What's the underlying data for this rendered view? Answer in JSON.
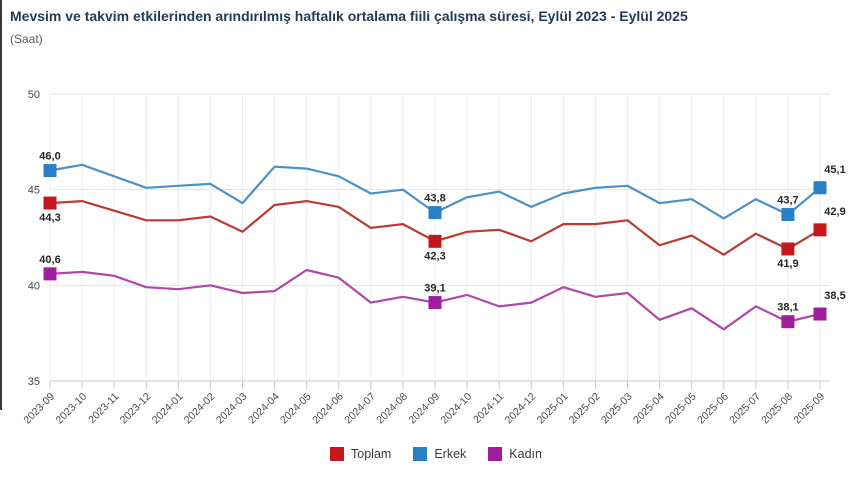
{
  "header": {
    "title": "Mevsim ve takvim etkilerinden arındırılmış haftalık ortalama fiili çalışma süresi, Eylül 2023 - Eylül 2025",
    "subtitle": "(Saat)"
  },
  "colors": {
    "title": "#1f3b57",
    "subtitle": "#595959",
    "grid": "#ececec",
    "grid_h": "#e3e3e3",
    "axis": "#c9c9c9",
    "tick_text": "#4a4a4a",
    "data_label": "#262626",
    "legend_text": "#3a3a3a",
    "left_border": "#3a3a3a"
  },
  "chart_data": {
    "type": "line",
    "x": [
      "2023-09",
      "2023-10",
      "2023-11",
      "2023-12",
      "2024-01",
      "2024-02",
      "2024-03",
      "2024-04",
      "2024-05",
      "2024-06",
      "2024-07",
      "2024-08",
      "2024-09",
      "2024-10",
      "2024-11",
      "2024-12",
      "2025-01",
      "2025-02",
      "2025-03",
      "2025-04",
      "2025-05",
      "2025-06",
      "2025-07",
      "2025-08",
      "2025-09"
    ],
    "xlabel": "",
    "ylabel": "Saat",
    "ylim": [
      35,
      50
    ],
    "yticks": [
      35,
      40,
      45,
      50
    ],
    "grid": true,
    "legend_position": "bottom",
    "series": [
      {
        "name": "Toplam",
        "color": "#bb3a32",
        "marker_color": "#c3191c",
        "values": [
          44.3,
          44.4,
          43.9,
          43.4,
          43.4,
          43.6,
          42.8,
          44.2,
          44.4,
          44.1,
          43.0,
          43.2,
          42.3,
          42.8,
          42.9,
          42.3,
          43.2,
          43.2,
          43.4,
          42.1,
          42.6,
          41.6,
          42.7,
          41.9,
          42.9
        ]
      },
      {
        "name": "Erkek",
        "color": "#4a90c9",
        "marker_color": "#2b7fc4",
        "values": [
          46.0,
          46.3,
          45.7,
          45.1,
          45.2,
          45.3,
          44.3,
          46.2,
          46.1,
          45.7,
          44.8,
          45.0,
          43.8,
          44.6,
          44.9,
          44.1,
          44.8,
          45.1,
          45.2,
          44.3,
          44.5,
          43.5,
          44.5,
          43.7,
          45.1
        ]
      },
      {
        "name": "Kadın",
        "color": "#af46aa",
        "marker_color": "#a01e9e",
        "values": [
          40.6,
          40.7,
          40.5,
          39.9,
          39.8,
          40.0,
          39.6,
          39.7,
          40.8,
          40.4,
          39.1,
          39.4,
          39.1,
          39.5,
          38.9,
          39.1,
          39.9,
          39.4,
          39.6,
          38.2,
          38.8,
          37.7,
          38.9,
          38.1,
          38.5
        ]
      }
    ],
    "labeled_points": [
      {
        "series": "Erkek",
        "x": "2023-09",
        "label": "46,0",
        "placement": "above"
      },
      {
        "series": "Toplam",
        "x": "2023-09",
        "label": "44,3",
        "placement": "below"
      },
      {
        "series": "Kadın",
        "x": "2023-09",
        "label": "40,6",
        "placement": "above"
      },
      {
        "series": "Erkek",
        "x": "2024-09",
        "label": "43,8",
        "placement": "above"
      },
      {
        "series": "Toplam",
        "x": "2024-09",
        "label": "42,3",
        "placement": "below"
      },
      {
        "series": "Kadın",
        "x": "2024-09",
        "label": "39,1",
        "placement": "above"
      },
      {
        "series": "Erkek",
        "x": "2025-08",
        "label": "43,7",
        "placement": "above"
      },
      {
        "series": "Toplam",
        "x": "2025-08",
        "label": "41,9",
        "placement": "below"
      },
      {
        "series": "Kadın",
        "x": "2025-08",
        "label": "38,1",
        "placement": "above"
      },
      {
        "series": "Erkek",
        "x": "2025-09",
        "label": "45,1",
        "placement": "above-right"
      },
      {
        "series": "Toplam",
        "x": "2025-09",
        "label": "42,9",
        "placement": "above-right"
      },
      {
        "series": "Kadın",
        "x": "2025-09",
        "label": "38,5",
        "placement": "above-right"
      }
    ]
  }
}
